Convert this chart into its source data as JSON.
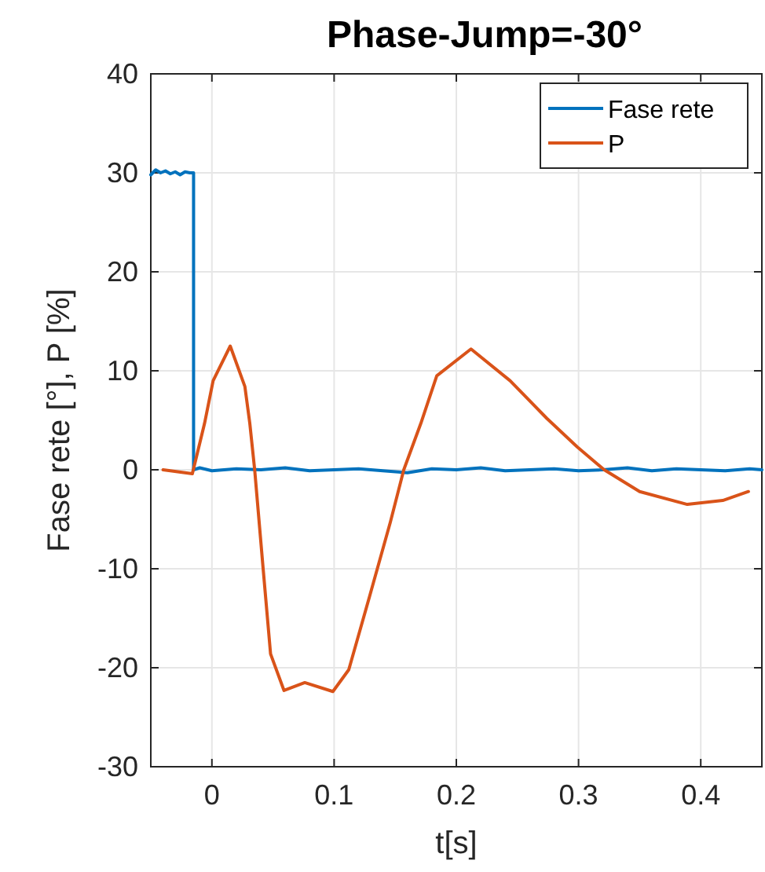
{
  "chart_data": {
    "type": "line",
    "title": "Phase-Jump=-30°",
    "xlabel": "t[s]",
    "ylabel": "Fase rete [°], P [%]",
    "xlim": [
      -0.05,
      0.45
    ],
    "xticks": [
      0,
      0.1,
      0.2,
      0.3,
      0.4
    ],
    "ylim": [
      -30,
      40
    ],
    "yticks": [
      -30,
      -20,
      -10,
      0,
      10,
      20,
      30,
      40
    ],
    "grid": true,
    "legend": "top right",
    "line_style": "solid",
    "marker": "none",
    "series": [
      {
        "name": "Fase rete",
        "color": "#0072bd",
        "x": [
          -0.05,
          -0.046,
          -0.042,
          -0.038,
          -0.034,
          -0.03,
          -0.026,
          -0.022,
          -0.018,
          -0.015,
          -0.015,
          -0.01,
          0.0,
          0.02,
          0.04,
          0.06,
          0.08,
          0.1,
          0.12,
          0.14,
          0.16,
          0.18,
          0.2,
          0.22,
          0.24,
          0.26,
          0.28,
          0.3,
          0.32,
          0.34,
          0.36,
          0.38,
          0.4,
          0.42,
          0.44,
          0.45
        ],
        "values": [
          29.8,
          30.3,
          30.0,
          30.2,
          29.9,
          30.1,
          29.8,
          30.1,
          30.0,
          30.0,
          0,
          0.2,
          -0.1,
          0.1,
          0,
          0.2,
          -0.1,
          0,
          0.1,
          -0.1,
          -0.3,
          0.1,
          0,
          0.2,
          -0.1,
          0,
          0.1,
          -0.1,
          0,
          0.2,
          -0.1,
          0.1,
          0,
          -0.1,
          0.1,
          0
        ]
      },
      {
        "name": "P",
        "color": "#d95319",
        "x": [
          -0.04,
          -0.016,
          -0.006,
          0.001,
          0.015,
          0.027,
          0.031,
          0.035,
          0.042,
          0.048,
          0.059,
          0.076,
          0.099,
          0.112,
          0.129,
          0.146,
          0.157,
          0.171,
          0.184,
          0.212,
          0.244,
          0.274,
          0.299,
          0.321,
          0.35,
          0.389,
          0.418,
          0.439
        ],
        "values": [
          0,
          -0.4,
          4.7,
          9.0,
          12.5,
          8.4,
          4.7,
          0,
          -10.1,
          -18.6,
          -22.3,
          -21.5,
          -22.4,
          -20.2,
          -12.8,
          -5.3,
          0,
          4.7,
          9.5,
          12.2,
          9.0,
          5.2,
          2.3,
          0,
          -2.2,
          -3.5,
          -3.1,
          -2.2
        ]
      }
    ]
  }
}
